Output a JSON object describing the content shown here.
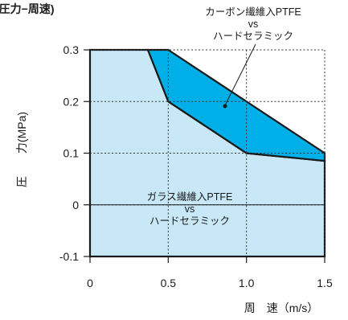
{
  "chart_data": {
    "type": "area",
    "title": "(圧力−周速)",
    "xlabel": "周　速（m/s）",
    "ylabel": "圧　　力(MPa)",
    "xlim": [
      0,
      1.5
    ],
    "ylim": [
      -0.1,
      0.3
    ],
    "x_ticks": [
      "0",
      "0.5",
      "1.0",
      "1.5"
    ],
    "y_ticks": [
      "-0.1",
      "0",
      "0.1",
      "0.2",
      "0.3"
    ],
    "x_tick_values": [
      0,
      0.5,
      1.0,
      1.5
    ],
    "y_tick_values": [
      -0.1,
      0,
      0.1,
      0.2,
      0.3
    ],
    "grid": true,
    "colors": {
      "light_region": "#c8e8f8",
      "dark_region": "#00aee8",
      "outline": "#1a1a1a"
    },
    "regions": [
      {
        "name_lines": [
          "ガラス繊維入PTFE",
          "vs",
          "ハードセラミック"
        ],
        "polygon": [
          [
            0,
            -0.1
          ],
          [
            0,
            0.3
          ],
          [
            0.37,
            0.3
          ],
          [
            0.5,
            0.2
          ],
          [
            1.0,
            0.1
          ],
          [
            1.5,
            0.085
          ],
          [
            1.5,
            -0.1
          ]
        ]
      },
      {
        "name_lines": [
          "カーボン繊維入PTFE",
          "vs",
          "ハードセラミック"
        ],
        "polygon": [
          [
            0.37,
            0.3
          ],
          [
            0.5,
            0.3
          ],
          [
            1.5,
            0.1
          ],
          [
            1.5,
            0.085
          ],
          [
            1.0,
            0.1
          ],
          [
            0.5,
            0.2
          ]
        ]
      }
    ]
  }
}
